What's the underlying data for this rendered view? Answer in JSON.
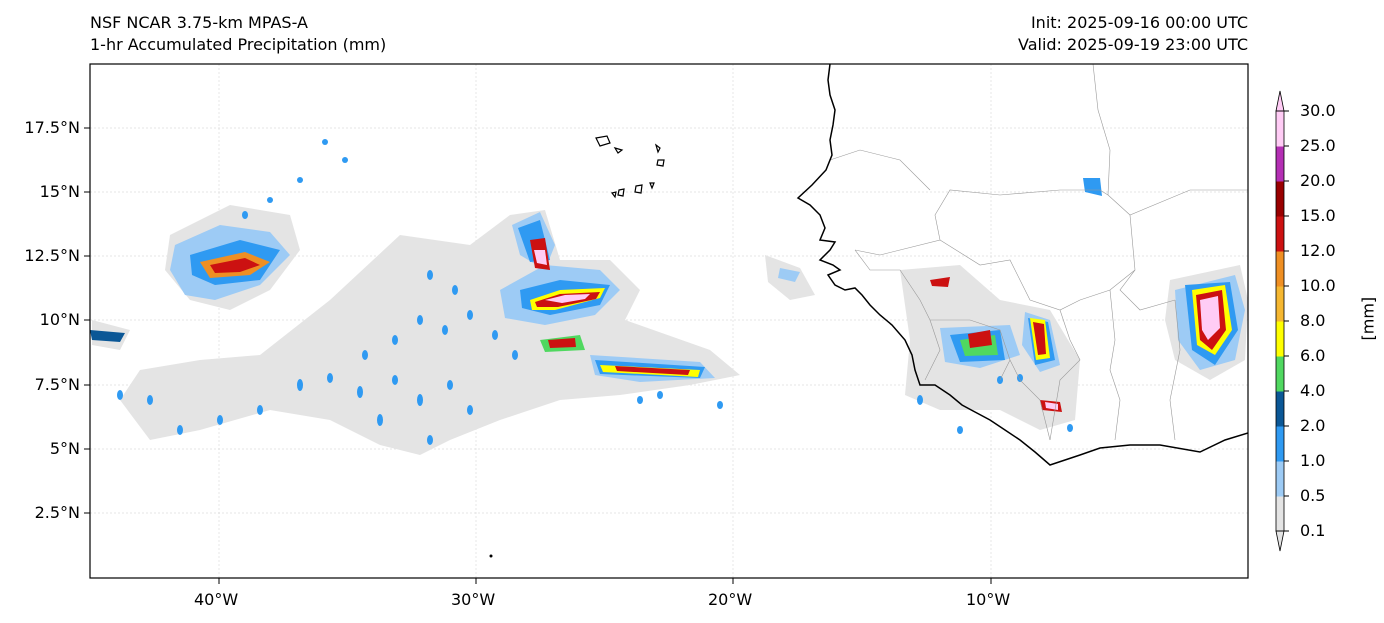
{
  "header": {
    "model": "NSF NCAR 3.75-km MPAS-A",
    "field": "1-hr Accumulated Precipitation (mm)",
    "init": "Init: 2025-09-16 00:00 UTC",
    "valid": "Valid: 2025-09-19 23:00 UTC"
  },
  "axes": {
    "lat_ticks": [
      "17.5°N",
      "15°N",
      "12.5°N",
      "10°N",
      "7.5°N",
      "5°N",
      "2.5°N"
    ],
    "lon_ticks": [
      "40°W",
      "30°W",
      "20°W",
      "10°W"
    ]
  },
  "colorbar": {
    "units": "[mm]",
    "levels": [
      "0.1",
      "0.5",
      "1.0",
      "2.0",
      "4.0",
      "6.0",
      "8.0",
      "10.0",
      "12.0",
      "15.0",
      "20.0",
      "25.0",
      "30.0"
    ],
    "colors": [
      "#e4e4e4",
      "#9dcbf5",
      "#2f9af2",
      "#0b5796",
      "#50d860",
      "#ffff00",
      "#f5b731",
      "#ef8f23",
      "#cc1111",
      "#990000",
      "#b42fb4",
      "#ffccf5"
    ]
  }
}
